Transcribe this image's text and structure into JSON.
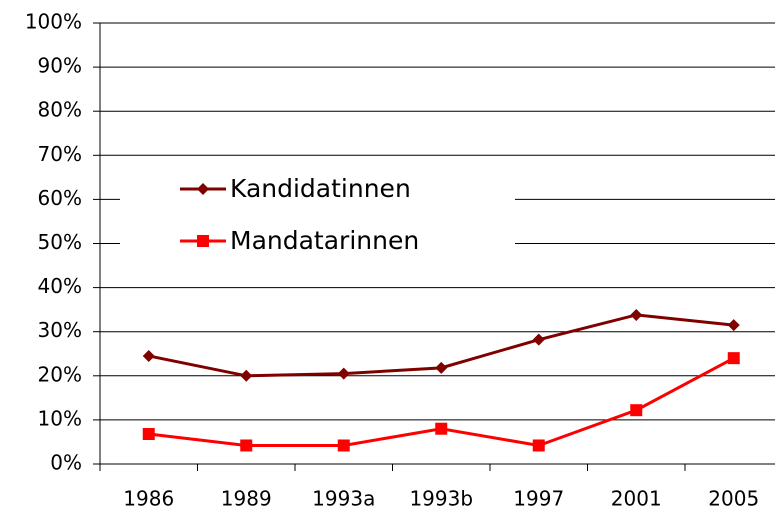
{
  "chart_data": {
    "type": "line",
    "categories": [
      "1986",
      "1989",
      "1993a",
      "1993b",
      "1997",
      "2001",
      "2005"
    ],
    "series": [
      {
        "name": "Kandidatinnen",
        "color": "#800000",
        "marker": "diamond",
        "values": [
          24.5,
          20,
          20.5,
          21.8,
          28.2,
          33.8,
          31.5
        ]
      },
      {
        "name": "Mandatarinnen",
        "color": "#ff0000",
        "marker": "square",
        "values": [
          6.8,
          4.2,
          4.2,
          8,
          4.2,
          12.2,
          24
        ]
      }
    ],
    "ylim": [
      0,
      100
    ],
    "yticks": [
      {
        "value": 0,
        "label": "0%"
      },
      {
        "value": 10,
        "label": "10%"
      },
      {
        "value": 20,
        "label": "20%"
      },
      {
        "value": 30,
        "label": "30%"
      },
      {
        "value": 40,
        "label": "40%"
      },
      {
        "value": 50,
        "label": "50%"
      },
      {
        "value": 60,
        "label": "60%"
      },
      {
        "value": 70,
        "label": "70%"
      },
      {
        "value": 80,
        "label": "80%"
      },
      {
        "value": 90,
        "label": "90%"
      },
      {
        "value": 100,
        "label": "100%"
      }
    ],
    "grid": true,
    "legend": "left"
  }
}
